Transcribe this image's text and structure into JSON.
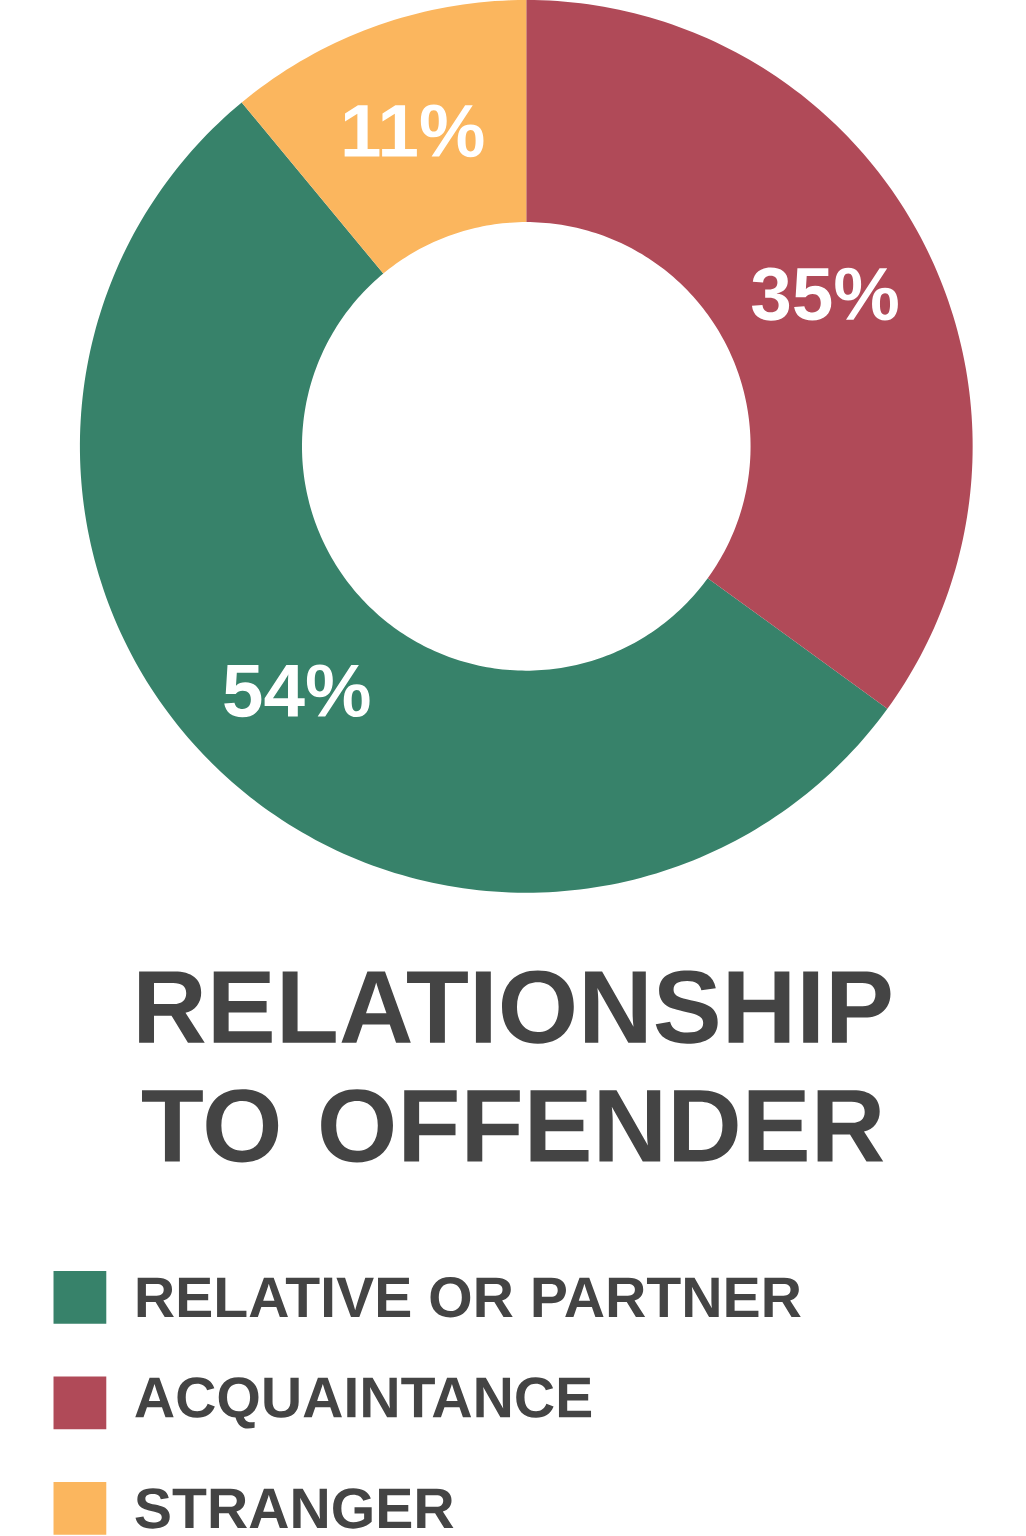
{
  "chart_data": {
    "type": "donut",
    "title": "RELATIONSHIP TO OFFENDER",
    "categories": [
      "RELATIVE OR PARTNER",
      "ACQUAINTANCE",
      "STRANGER"
    ],
    "values": [
      54,
      35,
      11
    ],
    "colors": [
      "#37826a",
      "#b04a58",
      "#fbb65e"
    ],
    "value_labels": [
      "54%",
      "35%",
      "11%"
    ],
    "legend": "bottom"
  }
}
